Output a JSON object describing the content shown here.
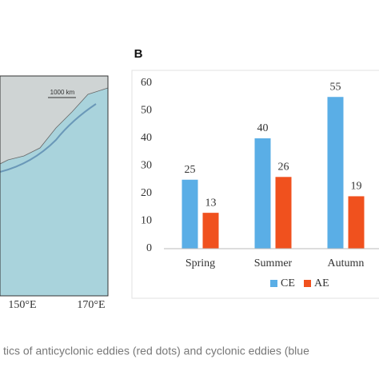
{
  "chart_data": {
    "type": "bar",
    "panel_label": "B",
    "categories": [
      "Spring",
      "Summer",
      "Autumn"
    ],
    "series": [
      {
        "name": "CE",
        "color": "#5aaee6",
        "values": [
          25,
          40,
          55
        ]
      },
      {
        "name": "AE",
        "color": "#f0511e",
        "values": [
          13,
          26,
          19
        ]
      }
    ],
    "ylim": [
      0,
      60
    ],
    "yticks": [
      0,
      10,
      20,
      30,
      40,
      50,
      60
    ],
    "grid": false,
    "legend": "bottom"
  },
  "map": {
    "scale_label": "1000 km",
    "xticks": [
      "150°E",
      "170°E"
    ]
  },
  "caption": "tics of anticyclonic eddies (red dots) and cyclonic eddies (blue"
}
